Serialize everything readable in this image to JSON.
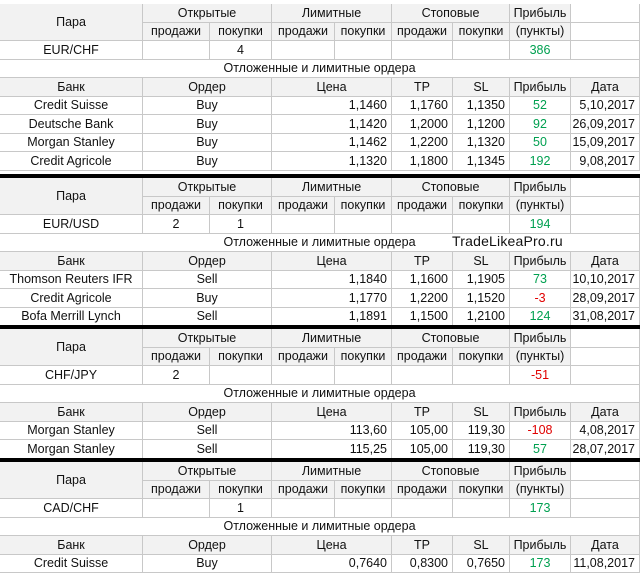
{
  "watermark": "TradeLikeaPro.ru",
  "labels": {
    "pair": "Пара",
    "open": "Открытые",
    "limit": "Лимитные",
    "stop": "Стоповые",
    "profit": "Прибыль",
    "sells": "продажи",
    "buys": "покупки",
    "points": "(пункты)",
    "pending": "Отложенные и лимитные ордера",
    "bank": "Банк",
    "order": "Ордер",
    "price": "Цена",
    "tp": "TP",
    "sl": "SL",
    "date": "Дата"
  },
  "blocks": [
    {
      "pair": "EUR/CHF",
      "open_sells": "",
      "open_buys": "4",
      "limit_sells": "",
      "limit_buys": "",
      "stop_sells": "",
      "stop_buys": "",
      "profit": "386",
      "profit_color": "#00a050",
      "orders": [
        {
          "bank": "Credit Suisse",
          "order": "Buy",
          "price": "1,1460",
          "tp": "1,1760",
          "sl": "1,1350",
          "profit": "52",
          "profit_color": "#00a050",
          "date": "5,10,2017"
        },
        {
          "bank": "Deutsche Bank",
          "order": "Buy",
          "price": "1,1420",
          "tp": "1,2000",
          "sl": "1,1200",
          "profit": "92",
          "profit_color": "#00a050",
          "date": "26,09,2017"
        },
        {
          "bank": "Morgan Stanley",
          "order": "Buy",
          "price": "1,1462",
          "tp": "1,2200",
          "sl": "1,1320",
          "profit": "50",
          "profit_color": "#00a050",
          "date": "15,09,2017"
        },
        {
          "bank": "Credit Agricole",
          "order": "Buy",
          "price": "1,1320",
          "tp": "1,1800",
          "sl": "1,1345",
          "profit": "192",
          "profit_color": "#00a050",
          "date": "9,08,2017"
        }
      ]
    },
    {
      "pair": "EUR/USD",
      "open_sells": "2",
      "open_buys": "1",
      "limit_sells": "",
      "limit_buys": "",
      "stop_sells": "",
      "stop_buys": "",
      "profit": "194",
      "profit_color": "#00a050",
      "orders": [
        {
          "bank": "Thomson Reuters IFR",
          "order": "Sell",
          "price": "1,1840",
          "tp": "1,1600",
          "sl": "1,1905",
          "profit": "73",
          "profit_color": "#00a050",
          "date": "10,10,2017"
        },
        {
          "bank": "Credit Agricole",
          "order": "Buy",
          "price": "1,1770",
          "tp": "1,2200",
          "sl": "1,1520",
          "profit": "-3",
          "profit_color": "#e00000",
          "date": "28,09,2017"
        },
        {
          "bank": "Bofa Merrill Lynch",
          "order": "Sell",
          "price": "1,1891",
          "tp": "1,1500",
          "sl": "1,2100",
          "profit": "124",
          "profit_color": "#00a050",
          "date": "31,08,2017"
        }
      ]
    },
    {
      "pair": "CHF/JPY",
      "open_sells": "2",
      "open_buys": "",
      "limit_sells": "",
      "limit_buys": "",
      "stop_sells": "",
      "stop_buys": "",
      "profit": "-51",
      "profit_color": "#e00000",
      "orders": [
        {
          "bank": "Morgan Stanley",
          "order": "Sell",
          "price": "113,60",
          "tp": "105,00",
          "sl": "119,30",
          "profit": "-108",
          "profit_color": "#e00000",
          "date": "4,08,2017"
        },
        {
          "bank": "Morgan Stanley",
          "order": "Sell",
          "price": "115,25",
          "tp": "105,00",
          "sl": "119,30",
          "profit": "57",
          "profit_color": "#00a050",
          "date": "28,07,2017"
        }
      ]
    },
    {
      "pair": "CAD/CHF",
      "open_sells": "",
      "open_buys": "1",
      "limit_sells": "",
      "limit_buys": "",
      "stop_sells": "",
      "stop_buys": "",
      "profit": "173",
      "profit_color": "#00a050",
      "orders": [
        {
          "bank": "Credit Suisse",
          "order": "Buy",
          "price": "0,7640",
          "tp": "0,8300",
          "sl": "0,7650",
          "profit": "173",
          "profit_color": "#00a050",
          "date": "11,08,2017"
        }
      ]
    }
  ]
}
